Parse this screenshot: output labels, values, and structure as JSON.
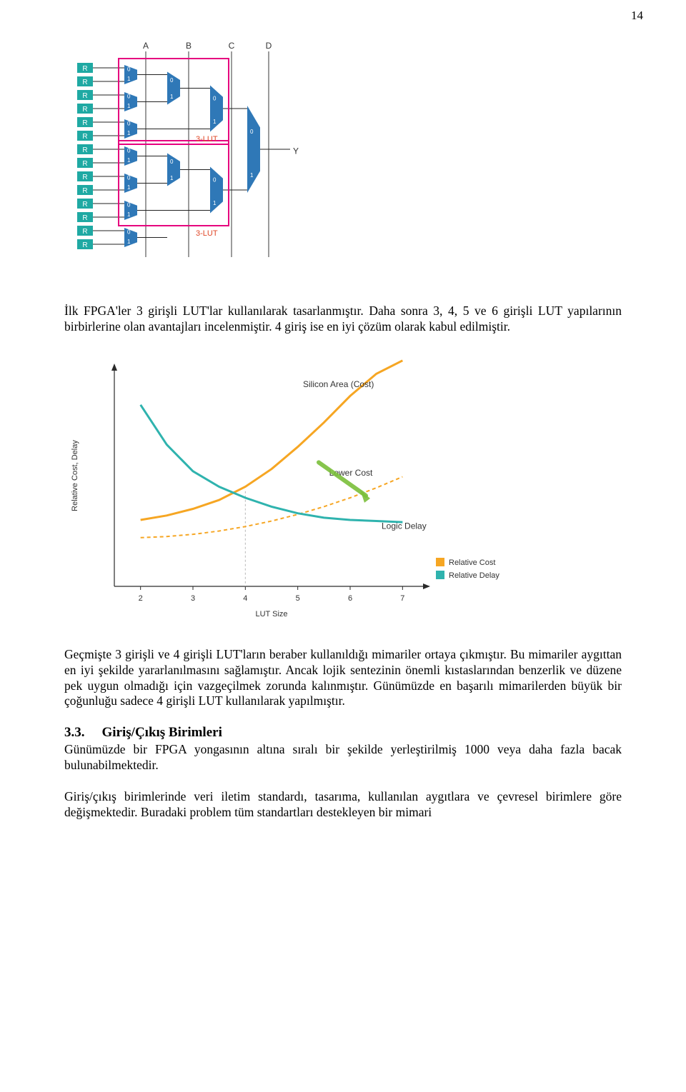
{
  "page_number": "14",
  "lut_diagram": {
    "column_labels": [
      "A",
      "B",
      "C",
      "D"
    ],
    "output_label": "Y",
    "box_label_top": "3-LUT",
    "box_label_bottom": "3-LUT",
    "r_count": 14,
    "mux_port_0": "0",
    "mux_port_1": "1",
    "r_label": "R",
    "colors": {
      "r_block": "#1fa9a3",
      "mux": "#2f78b7",
      "mux_text": "#ffffff",
      "wire": "#222222",
      "highlight_box": "#e6007e",
      "box_label": "#e04828",
      "col_text": "#333333"
    }
  },
  "para1": "İlk FPGA'ler 3 girişli LUT'lar kullanılarak tasarlanmıştır. Daha sonra 3, 4, 5 ve 6 girişli LUT yapılarının birbirlerine olan avantajları incelenmiştir. 4 giriş ise en iyi çözüm olarak kabul edilmiştir.",
  "chart": {
    "type": "line",
    "xlabel": "LUT Size",
    "ylabel": "Relative Cost, Delay",
    "title": "",
    "xlim": [
      1.5,
      7.5
    ],
    "ylim": [
      0,
      10
    ],
    "xticks": [
      2,
      3,
      4,
      5,
      6,
      7
    ],
    "yticks": [],
    "legend": [
      {
        "label": "Relative Cost",
        "color": "#f6a623"
      },
      {
        "label": "Relative Delay",
        "color": "#2fb3ae"
      }
    ],
    "annotations": {
      "silicon_area": "Silicon Area (Cost)",
      "lower_cost": "Lower Cost",
      "logic_delay": "Logic Delay"
    },
    "series": {
      "silicon_area_cost": {
        "color": "#f6a623",
        "stroke_width": 3,
        "points": [
          [
            2,
            3.0
          ],
          [
            2.5,
            3.2
          ],
          [
            3,
            3.5
          ],
          [
            3.5,
            3.9
          ],
          [
            4,
            4.5
          ],
          [
            4.5,
            5.3
          ],
          [
            5,
            6.3
          ],
          [
            5.5,
            7.4
          ],
          [
            6,
            8.6
          ],
          [
            6.5,
            9.6
          ],
          [
            7,
            10.2
          ]
        ]
      },
      "logic_delay": {
        "color": "#2fb3ae",
        "stroke_width": 3,
        "points": [
          [
            2,
            8.2
          ],
          [
            2.5,
            6.4
          ],
          [
            3,
            5.2
          ],
          [
            3.5,
            4.5
          ],
          [
            4,
            4.0
          ],
          [
            4.5,
            3.6
          ],
          [
            5,
            3.3
          ],
          [
            5.5,
            3.1
          ],
          [
            6,
            3.0
          ],
          [
            6.5,
            2.95
          ],
          [
            7,
            2.9
          ]
        ]
      },
      "dashed_cost": {
        "color": "#f6a623",
        "stroke_width": 2,
        "dash": "5,4",
        "points": [
          [
            2,
            2.2
          ],
          [
            2.5,
            2.25
          ],
          [
            3,
            2.35
          ],
          [
            3.5,
            2.5
          ],
          [
            4,
            2.7
          ],
          [
            4.5,
            2.95
          ],
          [
            5,
            3.25
          ],
          [
            5.5,
            3.6
          ],
          [
            6,
            4.0
          ],
          [
            6.5,
            4.45
          ],
          [
            7,
            4.95
          ]
        ]
      }
    },
    "crossover_x": 4,
    "axis_color": "#2a2a2a",
    "grid_color": "#b8b8b8",
    "background_color": "#ffffff",
    "label_fontsize": 11,
    "tick_fontsize": 11
  },
  "para2": "Geçmişte 3 girişli ve 4 girişli LUT'ların beraber kullanıldığı mimariler ortaya çıkmıştır. Bu mimariler aygıttan en iyi şekilde yararlanılmasını sağlamıştır. Ancak lojik sentezinin önemli kıstaslarından benzerlik ve düzene pek uygun olmadığı için vazgeçilmek zorunda kalınmıştır. Günümüzde en başarılı mimarilerden büyük bir çoğunluğu sadece 4 girişli LUT kullanılarak yapılmıştır.",
  "section": {
    "number": "3.3.",
    "title": "Giriş/Çıkış Birimleri",
    "para": "Günümüzde bir FPGA yongasının altına sıralı bir şekilde yerleştirilmiş 1000 veya daha fazla bacak bulunabilmektedir."
  },
  "para3": "Giriş/çıkış birimlerinde veri iletim standardı, tasarıma, kullanılan aygıtlara ve çevresel birimlere göre değişmektedir. Buradaki problem tüm standartları destekleyen bir mimari"
}
